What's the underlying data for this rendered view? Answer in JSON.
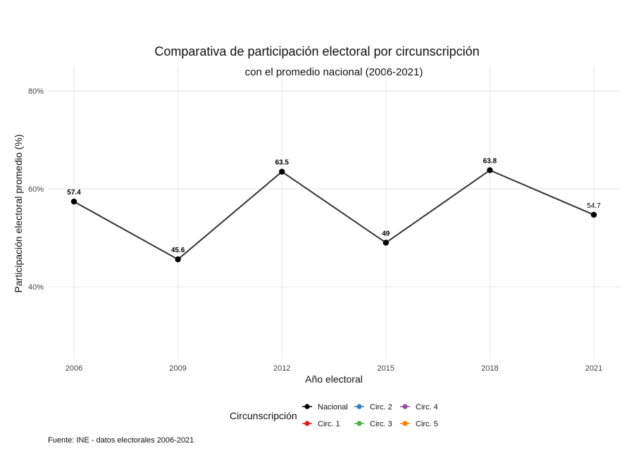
{
  "chart_data": {
    "type": "line",
    "title": "Comparativa de participación electoral por circunscripción",
    "subtitle": "con el promedio nacional (2006-2021)",
    "xlabel": "Año electoral",
    "ylabel": "Participación electoral promedio (%)",
    "x": [
      2006,
      2009,
      2012,
      2015,
      2018,
      2021
    ],
    "x_tick_labels": [
      "2006",
      "2009",
      "2012",
      "2015",
      "2018",
      "2021"
    ],
    "ylim": [
      25,
      85
    ],
    "y_ticks": [
      40,
      60,
      80
    ],
    "y_tick_labels": [
      "40%",
      "60%",
      "80%"
    ],
    "grid": true,
    "series": [
      {
        "name": "Nacional",
        "color": "#000000",
        "line_color": "#333333",
        "values": [
          57.4,
          45.6,
          63.5,
          49,
          63.8,
          54.7
        ],
        "data_labels": [
          "57.4",
          "45.6",
          "63.5",
          "49",
          "63.8",
          "54.7"
        ],
        "label_bold": [
          true,
          true,
          true,
          true,
          true,
          false
        ]
      }
    ],
    "legend": {
      "title": "Circunscripción",
      "position": "bottom",
      "entries": [
        {
          "name": "Nacional",
          "color": "#000000"
        },
        {
          "name": "Circ. 1",
          "color": "#e41a1c"
        },
        {
          "name": "Circ. 2",
          "color": "#377eb8"
        },
        {
          "name": "Circ. 3",
          "color": "#4daf4a"
        },
        {
          "name": "Circ. 4",
          "color": "#984ea3"
        },
        {
          "name": "Circ. 5",
          "color": "#ff7f00"
        }
      ]
    },
    "caption": "Fuente: INE - datos electorales 2006-2021"
  }
}
